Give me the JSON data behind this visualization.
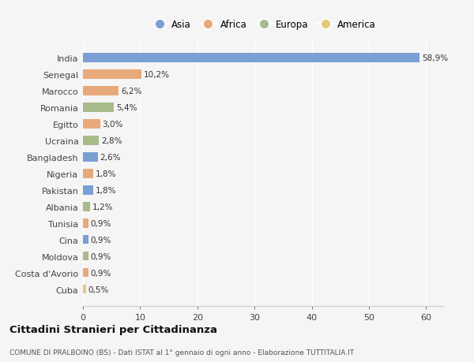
{
  "countries": [
    "India",
    "Senegal",
    "Marocco",
    "Romania",
    "Egitto",
    "Ucraina",
    "Bangladesh",
    "Nigeria",
    "Pakistan",
    "Albania",
    "Tunisia",
    "Cina",
    "Moldova",
    "Costa d'Avorio",
    "Cuba"
  ],
  "values": [
    58.9,
    10.2,
    6.2,
    5.4,
    3.0,
    2.8,
    2.6,
    1.8,
    1.8,
    1.2,
    0.9,
    0.9,
    0.9,
    0.9,
    0.5
  ],
  "labels": [
    "58,9%",
    "10,2%",
    "6,2%",
    "5,4%",
    "3,0%",
    "2,8%",
    "2,6%",
    "1,8%",
    "1,8%",
    "1,2%",
    "0,9%",
    "0,9%",
    "0,9%",
    "0,9%",
    "0,5%"
  ],
  "continents": [
    "Asia",
    "Africa",
    "Africa",
    "Europa",
    "Africa",
    "Europa",
    "Asia",
    "Africa",
    "Asia",
    "Europa",
    "Africa",
    "Asia",
    "Europa",
    "Africa",
    "America"
  ],
  "colors": {
    "Asia": "#7a9fd4",
    "Africa": "#e8a97a",
    "Europa": "#a8bb8a",
    "America": "#e8c87a"
  },
  "background_color": "#f5f5f5",
  "title_main": "Cittadini Stranieri per Cittadinanza",
  "title_sub": "COMUNE DI PRALBOINO (BS) - Dati ISTAT al 1° gennaio di ogni anno - Elaborazione TUTTITALIA.IT",
  "xlim": [
    0,
    63
  ],
  "xticks": [
    0,
    10,
    20,
    30,
    40,
    50,
    60
  ],
  "bar_height": 0.55
}
